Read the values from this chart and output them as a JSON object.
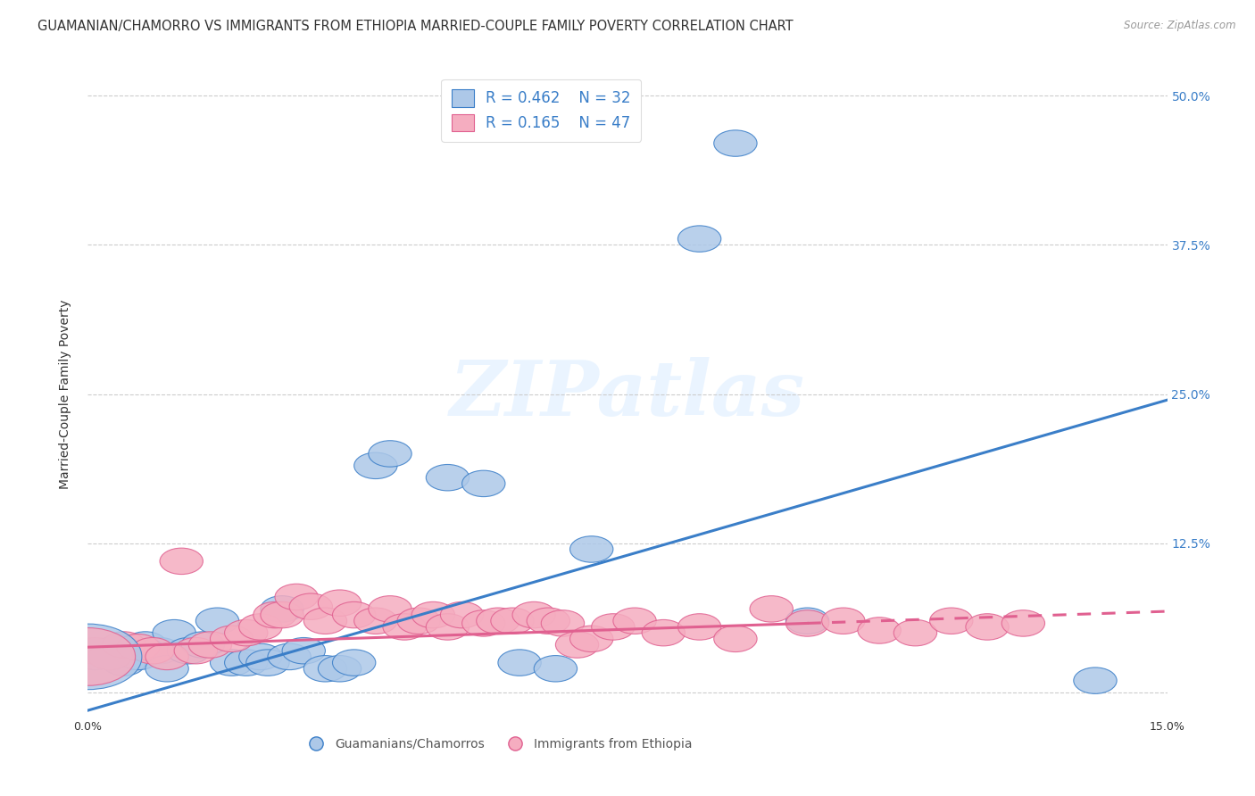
{
  "title": "GUAMANIAN/CHAMORRO VS IMMIGRANTS FROM ETHIOPIA MARRIED-COUPLE FAMILY POVERTY CORRELATION CHART",
  "source": "Source: ZipAtlas.com",
  "ylabel": "Married-Couple Family Poverty",
  "xlim": [
    0.0,
    0.15
  ],
  "ylim": [
    -0.02,
    0.52
  ],
  "xticks": [
    0.0,
    0.05,
    0.1,
    0.15
  ],
  "xticklabels": [
    "0.0%",
    "",
    "",
    "15.0%"
  ],
  "yticks": [
    0.0,
    0.125,
    0.25,
    0.375,
    0.5
  ],
  "yticklabels": [
    "",
    "12.5%",
    "25.0%",
    "37.5%",
    "50.0%"
  ],
  "watermark": "ZIPatlas",
  "legend_R1": "R = 0.462",
  "legend_N1": "N = 32",
  "legend_R2": "R = 0.165",
  "legend_N2": "N = 47",
  "color_blue": "#adc8e8",
  "color_pink": "#f5adc0",
  "line_blue": "#3a7ec8",
  "line_pink": "#e06090",
  "tick_label_color_right": "#3a7ec8",
  "blue_scatter_x": [
    0.001,
    0.003,
    0.005,
    0.007,
    0.008,
    0.01,
    0.011,
    0.012,
    0.014,
    0.016,
    0.018,
    0.02,
    0.022,
    0.024,
    0.025,
    0.027,
    0.028,
    0.03,
    0.033,
    0.035,
    0.037,
    0.04,
    0.042,
    0.05,
    0.055,
    0.06,
    0.065,
    0.07,
    0.085,
    0.09,
    0.1,
    0.14
  ],
  "blue_scatter_y": [
    0.03,
    0.035,
    0.025,
    0.03,
    0.04,
    0.035,
    0.02,
    0.05,
    0.035,
    0.04,
    0.06,
    0.025,
    0.025,
    0.03,
    0.025,
    0.07,
    0.03,
    0.035,
    0.02,
    0.02,
    0.025,
    0.19,
    0.2,
    0.18,
    0.175,
    0.025,
    0.02,
    0.12,
    0.38,
    0.46,
    0.06,
    0.01
  ],
  "pink_scatter_x": [
    0.001,
    0.003,
    0.005,
    0.007,
    0.009,
    0.011,
    0.013,
    0.015,
    0.017,
    0.02,
    0.022,
    0.024,
    0.026,
    0.027,
    0.029,
    0.031,
    0.033,
    0.035,
    0.037,
    0.04,
    0.042,
    0.044,
    0.046,
    0.048,
    0.05,
    0.052,
    0.055,
    0.057,
    0.059,
    0.062,
    0.064,
    0.066,
    0.068,
    0.07,
    0.073,
    0.076,
    0.08,
    0.085,
    0.09,
    0.095,
    0.1,
    0.105,
    0.11,
    0.115,
    0.12,
    0.125,
    0.13
  ],
  "pink_scatter_y": [
    0.035,
    0.03,
    0.04,
    0.038,
    0.035,
    0.03,
    0.11,
    0.035,
    0.04,
    0.045,
    0.05,
    0.055,
    0.065,
    0.065,
    0.08,
    0.072,
    0.06,
    0.075,
    0.065,
    0.06,
    0.07,
    0.055,
    0.06,
    0.065,
    0.055,
    0.065,
    0.058,
    0.06,
    0.06,
    0.065,
    0.06,
    0.058,
    0.04,
    0.045,
    0.055,
    0.06,
    0.05,
    0.055,
    0.045,
    0.07,
    0.058,
    0.06,
    0.052,
    0.05,
    0.06,
    0.055,
    0.058
  ],
  "blue_trend_x0": 0.0,
  "blue_trend_y0": -0.015,
  "blue_trend_x1": 0.15,
  "blue_trend_y1": 0.245,
  "pink_trend_x0": 0.0,
  "pink_trend_y0": 0.038,
  "pink_trend_x1": 0.1,
  "pink_trend_y1": 0.058,
  "pink_trend_dash_x0": 0.1,
  "pink_trend_dash_x1": 0.15,
  "pink_trend_dash_y0": 0.058,
  "pink_trend_dash_y1": 0.068
}
